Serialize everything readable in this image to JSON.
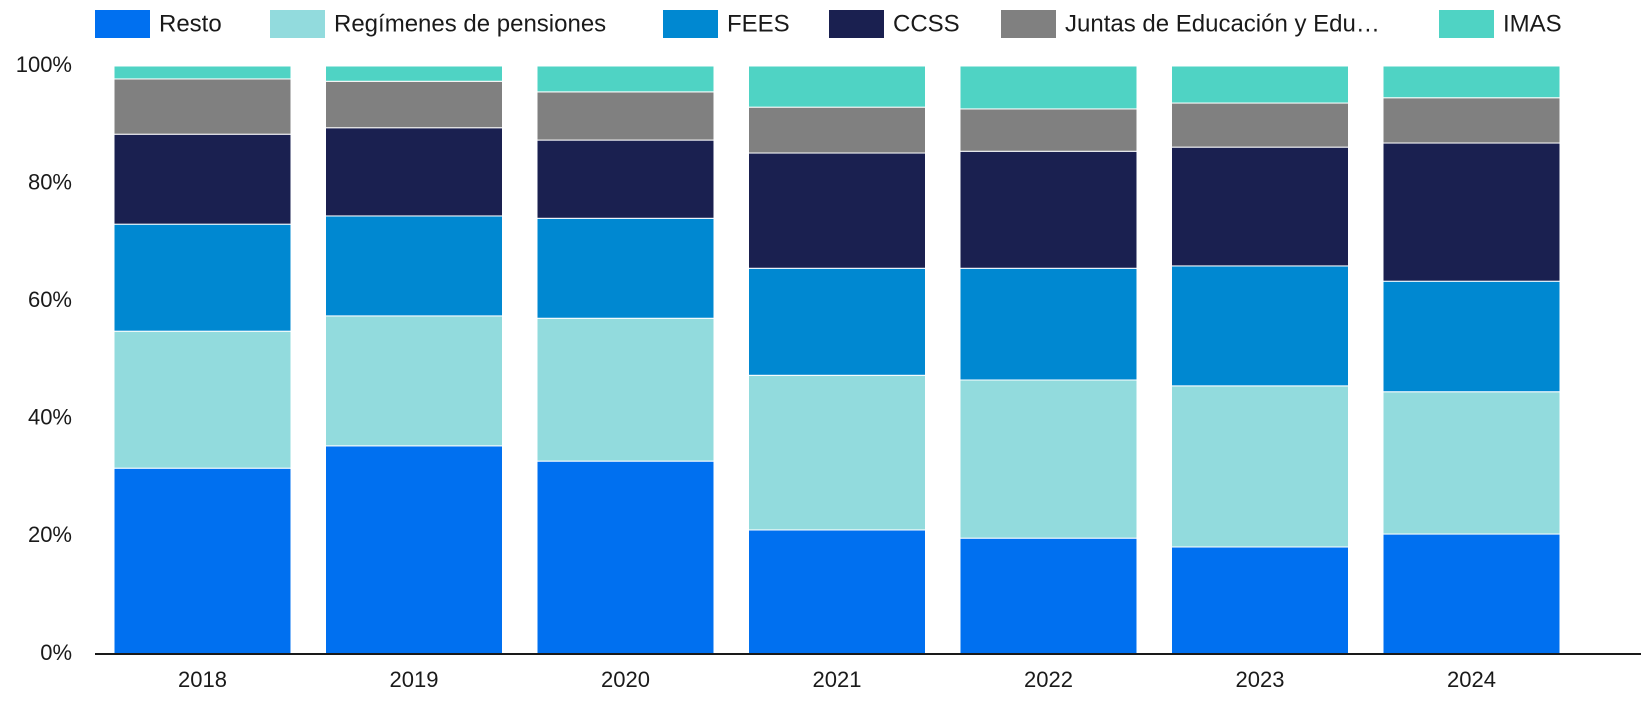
{
  "chart_data": {
    "type": "stacked_bar",
    "categories": [
      "2018",
      "2019",
      "2020",
      "2021",
      "2022",
      "2023",
      "2024"
    ],
    "series": [
      {
        "name": "Resto",
        "color": "#0070f0",
        "values": [
          31.6,
          35.4,
          32.8,
          21.1,
          19.7,
          18.2,
          20.4
        ]
      },
      {
        "name": "Regímenes de pensiones",
        "color": "#92dbdd",
        "values": [
          23.3,
          22.1,
          24.3,
          26.3,
          26.9,
          27.4,
          24.2
        ]
      },
      {
        "name": "FEES",
        "color": "#0088d1",
        "values": [
          18.2,
          17.0,
          17.0,
          18.2,
          19.0,
          20.4,
          18.8
        ]
      },
      {
        "name": "CCSS",
        "color": "#1a2050",
        "values": [
          15.3,
          15.0,
          13.3,
          19.6,
          19.9,
          20.2,
          23.5
        ]
      },
      {
        "name": "Juntas de Educación y Edu…",
        "color": "#808080",
        "values": [
          9.4,
          7.9,
          8.2,
          7.8,
          7.2,
          7.5,
          7.7
        ]
      },
      {
        "name": "IMAS",
        "color": "#4fd3c4",
        "values": [
          2.2,
          2.6,
          4.4,
          7.0,
          7.3,
          6.3,
          5.4
        ]
      }
    ],
    "ylim": [
      0,
      100
    ],
    "yticks": [
      {
        "value": 0,
        "label": "0%"
      },
      {
        "value": 20,
        "label": "20%"
      },
      {
        "value": 40,
        "label": "40%"
      },
      {
        "value": 60,
        "label": "60%"
      },
      {
        "value": 80,
        "label": "80%"
      },
      {
        "value": 100,
        "label": "100%"
      }
    ],
    "legend": "top"
  }
}
